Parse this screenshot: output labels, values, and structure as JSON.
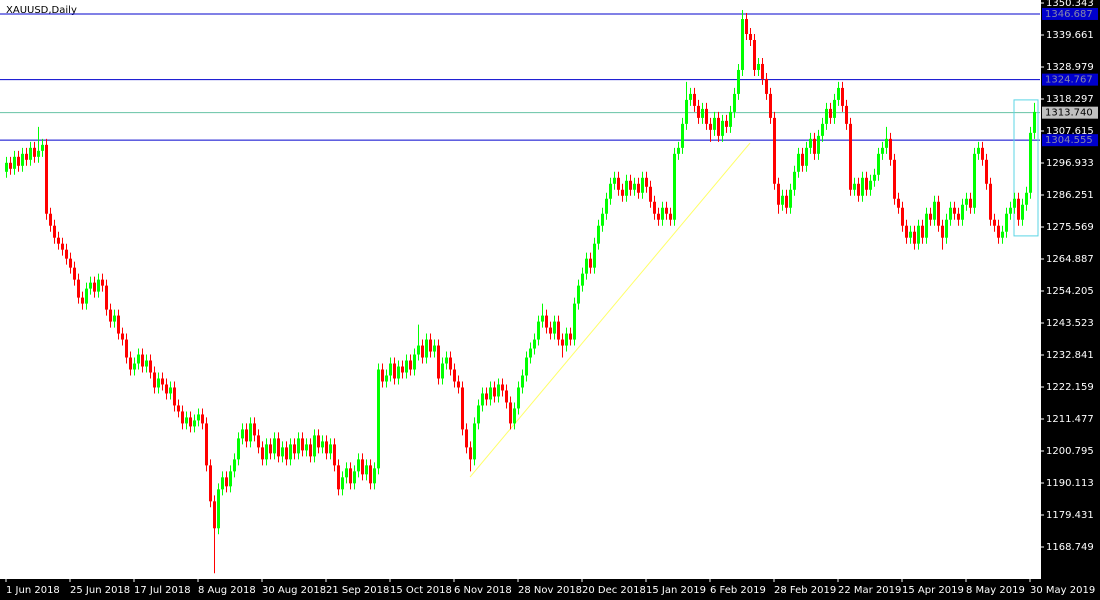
{
  "chart_data": {
    "type": "candlestick",
    "title": "XAUUSD,Daily",
    "up_color": "#00ff00",
    "down_color": "#ff0000",
    "background": "#ffffff",
    "candles": {
      "open": [
        1294,
        1297,
        1295,
        1299,
        1296,
        1300,
        1298,
        1302,
        1299,
        1301,
        1303,
        1280,
        1276,
        1272,
        1270,
        1268,
        1265,
        1262,
        1258,
        1252,
        1250,
        1255,
        1257,
        1254,
        1258,
        1256,
        1248,
        1244,
        1246,
        1240,
        1238,
        1232,
        1228,
        1230,
        1233,
        1229,
        1231,
        1227,
        1222,
        1225,
        1223,
        1220,
        1222,
        1216,
        1214,
        1210,
        1212,
        1209,
        1211,
        1213,
        1210,
        1196,
        1184,
        1175,
        1188,
        1192,
        1189,
        1194,
        1198,
        1205,
        1208,
        1204,
        1210,
        1206,
        1202,
        1198,
        1203,
        1200,
        1205,
        1199,
        1202,
        1198,
        1203,
        1200,
        1205,
        1201,
        1203,
        1199,
        1206,
        1202,
        1204,
        1200,
        1203,
        1196,
        1188,
        1192,
        1195,
        1190,
        1194,
        1198,
        1193,
        1196,
        1190,
        1195,
        1228,
        1224,
        1226,
        1230,
        1225,
        1229,
        1227,
        1231,
        1228,
        1233,
        1236,
        1232,
        1238,
        1234,
        1236,
        1225,
        1230,
        1232,
        1228,
        1224,
        1222,
        1208,
        1202,
        1198,
        1210,
        1216,
        1220,
        1218,
        1222,
        1219,
        1223,
        1221,
        1217,
        1210,
        1215,
        1222,
        1226,
        1232,
        1235,
        1238,
        1244,
        1246,
        1242,
        1240,
        1244,
        1238,
        1236,
        1240,
        1238,
        1250,
        1256,
        1260,
        1265,
        1262,
        1270,
        1276,
        1280,
        1285,
        1290,
        1292,
        1288,
        1286,
        1291,
        1288,
        1290,
        1287,
        1292,
        1289,
        1284,
        1280,
        1278,
        1282,
        1280,
        1278,
        1300,
        1302,
        1310,
        1318,
        1320,
        1316,
        1312,
        1315,
        1310,
        1308,
        1312,
        1306,
        1311,
        1309,
        1314,
        1320,
        1328,
        1345,
        1340,
        1338,
        1328,
        1330,
        1325,
        1320,
        1312,
        1290,
        1283,
        1286,
        1282,
        1288,
        1294,
        1300,
        1296,
        1302,
        1305,
        1300,
        1306,
        1310,
        1315,
        1312,
        1318,
        1322,
        1316,
        1310,
        1288,
        1290,
        1286,
        1292,
        1288,
        1291,
        1293,
        1300,
        1302,
        1305,
        1298,
        1285,
        1282,
        1276,
        1272,
        1274,
        1270,
        1276,
        1272,
        1280,
        1278,
        1284,
        1276,
        1272,
        1278,
        1282,
        1280,
        1278,
        1283,
        1285,
        1282,
        1300,
        1302,
        1298,
        1290,
        1278,
        1276,
        1272,
        1274,
        1280,
        1282,
        1285,
        1278,
        1283,
        1287,
        1307
      ],
      "high": [
        1299,
        1299,
        1301,
        1301,
        1302,
        1302,
        1304,
        1304,
        1309,
        1305,
        1305,
        1282,
        1278,
        1274,
        1272,
        1270,
        1267,
        1264,
        1260,
        1254,
        1257,
        1259,
        1259,
        1260,
        1260,
        1258,
        1250,
        1248,
        1248,
        1242,
        1240,
        1234,
        1232,
        1235,
        1235,
        1233,
        1233,
        1229,
        1227,
        1227,
        1225,
        1224,
        1224,
        1218,
        1216,
        1214,
        1214,
        1213,
        1215,
        1215,
        1212,
        1198,
        1186,
        1190,
        1194,
        1194,
        1196,
        1200,
        1207,
        1210,
        1210,
        1212,
        1212,
        1208,
        1204,
        1205,
        1205,
        1207,
        1207,
        1204,
        1204,
        1205,
        1205,
        1207,
        1207,
        1205,
        1205,
        1208,
        1208,
        1206,
        1206,
        1205,
        1205,
        1198,
        1194,
        1197,
        1197,
        1196,
        1200,
        1200,
        1198,
        1198,
        1197,
        1230,
        1230,
        1228,
        1232,
        1232,
        1231,
        1231,
        1233,
        1233,
        1235,
        1243,
        1238,
        1240,
        1240,
        1238,
        1238,
        1232,
        1234,
        1234,
        1230,
        1226,
        1224,
        1210,
        1204,
        1212,
        1218,
        1222,
        1222,
        1224,
        1224,
        1225,
        1225,
        1223,
        1219,
        1217,
        1224,
        1228,
        1234,
        1237,
        1240,
        1246,
        1250,
        1248,
        1244,
        1246,
        1246,
        1240,
        1242,
        1242,
        1252,
        1258,
        1262,
        1267,
        1267,
        1272,
        1278,
        1282,
        1287,
        1292,
        1294,
        1294,
        1290,
        1293,
        1293,
        1292,
        1292,
        1294,
        1294,
        1291,
        1286,
        1282,
        1284,
        1284,
        1282,
        1302,
        1304,
        1312,
        1324,
        1322,
        1322,
        1318,
        1317,
        1317,
        1312,
        1314,
        1314,
        1313,
        1313,
        1316,
        1322,
        1330,
        1348,
        1347,
        1342,
        1340,
        1332,
        1332,
        1327,
        1322,
        1314,
        1292,
        1288,
        1288,
        1290,
        1296,
        1302,
        1302,
        1304,
        1307,
        1307,
        1308,
        1312,
        1317,
        1317,
        1320,
        1324,
        1324,
        1318,
        1312,
        1292,
        1292,
        1294,
        1294,
        1293,
        1295,
        1302,
        1304,
        1309,
        1307,
        1300,
        1287,
        1284,
        1278,
        1276,
        1276,
        1278,
        1278,
        1282,
        1282,
        1286,
        1286,
        1278,
        1280,
        1284,
        1284,
        1282,
        1285,
        1287,
        1287,
        1302,
        1304,
        1304,
        1300,
        1292,
        1280,
        1278,
        1276,
        1282,
        1284,
        1287,
        1287,
        1285,
        1289,
        1309,
        1317
      ],
      "low": [
        1292,
        1293,
        1293,
        1294,
        1294,
        1296,
        1296,
        1297,
        1297,
        1299,
        1278,
        1274,
        1270,
        1268,
        1266,
        1263,
        1260,
        1256,
        1250,
        1248,
        1248,
        1253,
        1252,
        1252,
        1254,
        1246,
        1242,
        1242,
        1238,
        1236,
        1230,
        1226,
        1226,
        1228,
        1227,
        1227,
        1225,
        1220,
        1220,
        1221,
        1218,
        1218,
        1214,
        1212,
        1208,
        1208,
        1207,
        1207,
        1209,
        1208,
        1194,
        1182,
        1160,
        1173,
        1186,
        1187,
        1187,
        1192,
        1196,
        1203,
        1202,
        1202,
        1204,
        1200,
        1196,
        1196,
        1198,
        1198,
        1197,
        1197,
        1196,
        1196,
        1198,
        1198,
        1199,
        1199,
        1197,
        1197,
        1200,
        1200,
        1198,
        1198,
        1194,
        1186,
        1186,
        1190,
        1188,
        1188,
        1192,
        1191,
        1191,
        1188,
        1188,
        1193,
        1222,
        1222,
        1224,
        1223,
        1223,
        1225,
        1225,
        1226,
        1226,
        1231,
        1230,
        1230,
        1232,
        1232,
        1223,
        1223,
        1228,
        1226,
        1222,
        1220,
        1206,
        1200,
        1194,
        1196,
        1208,
        1214,
        1216,
        1216,
        1217,
        1217,
        1219,
        1215,
        1208,
        1208,
        1213,
        1220,
        1224,
        1230,
        1233,
        1236,
        1242,
        1240,
        1238,
        1238,
        1236,
        1232,
        1234,
        1236,
        1236,
        1248,
        1254,
        1258,
        1260,
        1260,
        1268,
        1274,
        1278,
        1283,
        1288,
        1286,
        1284,
        1284,
        1286,
        1286,
        1285,
        1285,
        1287,
        1282,
        1278,
        1276,
        1276,
        1278,
        1276,
        1276,
        1298,
        1300,
        1308,
        1316,
        1314,
        1310,
        1310,
        1308,
        1304,
        1306,
        1304,
        1304,
        1307,
        1307,
        1312,
        1318,
        1326,
        1338,
        1336,
        1326,
        1326,
        1323,
        1318,
        1310,
        1288,
        1280,
        1281,
        1280,
        1280,
        1286,
        1292,
        1294,
        1294,
        1300,
        1298,
        1298,
        1304,
        1308,
        1310,
        1310,
        1316,
        1314,
        1308,
        1286,
        1286,
        1284,
        1284,
        1286,
        1286,
        1289,
        1291,
        1298,
        1300,
        1296,
        1283,
        1280,
        1274,
        1270,
        1270,
        1268,
        1268,
        1270,
        1270,
        1276,
        1276,
        1274,
        1268,
        1270,
        1276,
        1278,
        1276,
        1276,
        1281,
        1280,
        1280,
        1298,
        1296,
        1288,
        1276,
        1274,
        1270,
        1270,
        1272,
        1278,
        1280,
        1276,
        1276,
        1281,
        1285,
        1305
      ],
      "close": [
        1297,
        1295,
        1299,
        1296,
        1300,
        1298,
        1302,
        1299,
        1301,
        1303,
        1280,
        1276,
        1272,
        1270,
        1268,
        1265,
        1262,
        1258,
        1252,
        1250,
        1255,
        1257,
        1254,
        1258,
        1256,
        1248,
        1244,
        1246,
        1240,
        1238,
        1232,
        1228,
        1230,
        1233,
        1229,
        1231,
        1227,
        1222,
        1225,
        1223,
        1220,
        1222,
        1216,
        1214,
        1210,
        1212,
        1209,
        1211,
        1213,
        1210,
        1196,
        1184,
        1175,
        1188,
        1192,
        1189,
        1194,
        1198,
        1205,
        1208,
        1204,
        1210,
        1206,
        1202,
        1198,
        1203,
        1200,
        1205,
        1199,
        1202,
        1198,
        1203,
        1200,
        1205,
        1201,
        1203,
        1199,
        1206,
        1202,
        1204,
        1200,
        1203,
        1196,
        1188,
        1192,
        1195,
        1190,
        1194,
        1198,
        1193,
        1196,
        1190,
        1195,
        1228,
        1224,
        1226,
        1230,
        1225,
        1229,
        1227,
        1231,
        1228,
        1233,
        1236,
        1232,
        1238,
        1234,
        1236,
        1225,
        1230,
        1232,
        1228,
        1224,
        1222,
        1208,
        1202,
        1198,
        1210,
        1216,
        1220,
        1218,
        1222,
        1219,
        1223,
        1221,
        1217,
        1210,
        1215,
        1222,
        1226,
        1232,
        1235,
        1238,
        1244,
        1246,
        1242,
        1240,
        1244,
        1238,
        1236,
        1240,
        1238,
        1250,
        1256,
        1260,
        1265,
        1262,
        1270,
        1276,
        1280,
        1285,
        1290,
        1292,
        1288,
        1286,
        1291,
        1288,
        1290,
        1287,
        1292,
        1289,
        1284,
        1280,
        1278,
        1282,
        1280,
        1278,
        1300,
        1302,
        1310,
        1318,
        1320,
        1316,
        1312,
        1315,
        1310,
        1308,
        1312,
        1306,
        1311,
        1309,
        1314,
        1320,
        1328,
        1345,
        1340,
        1338,
        1328,
        1330,
        1325,
        1320,
        1312,
        1290,
        1283,
        1286,
        1282,
        1288,
        1294,
        1300,
        1296,
        1302,
        1305,
        1300,
        1306,
        1310,
        1315,
        1312,
        1318,
        1322,
        1316,
        1310,
        1288,
        1290,
        1286,
        1292,
        1288,
        1291,
        1293,
        1300,
        1302,
        1305,
        1298,
        1285,
        1282,
        1276,
        1272,
        1274,
        1270,
        1276,
        1272,
        1280,
        1278,
        1284,
        1276,
        1272,
        1278,
        1282,
        1280,
        1278,
        1283,
        1285,
        1282,
        1300,
        1302,
        1298,
        1290,
        1278,
        1276,
        1272,
        1274,
        1280,
        1282,
        1285,
        1278,
        1283,
        1287,
        1307,
        1314
      ]
    },
    "xlim": [
      -1.5,
      258.5
    ],
    "xticks": [
      {
        "value": 0,
        "label": "1 Jun 2018"
      },
      {
        "value": 16,
        "label": "25 Jun 2018"
      },
      {
        "value": 32,
        "label": "17 Jul 2018"
      },
      {
        "value": 48,
        "label": "8 Aug 2018"
      },
      {
        "value": 64,
        "label": "30 Aug 2018"
      },
      {
        "value": 80,
        "label": "21 Sep 2018"
      },
      {
        "value": 96,
        "label": "15 Oct 2018"
      },
      {
        "value": 112,
        "label": "6 Nov 2018"
      },
      {
        "value": 128,
        "label": "28 Nov 2018"
      },
      {
        "value": 144,
        "label": "20 Dec 2018"
      },
      {
        "value": 160,
        "label": "15 Jan 2019"
      },
      {
        "value": 176,
        "label": "6 Feb 2019"
      },
      {
        "value": 192,
        "label": "28 Feb 2019"
      },
      {
        "value": 208,
        "label": "22 Mar 2019"
      },
      {
        "value": 224,
        "label": "15 Apr 2019"
      },
      {
        "value": 240,
        "label": "8 May 2019"
      },
      {
        "value": 256,
        "label": "30 May 2019"
      }
    ],
    "ylim": [
      1158.4,
      1351.35
    ],
    "yticks": [
      1350.343,
      1339.661,
      1328.979,
      1318.297,
      1307.615,
      1296.933,
      1286.251,
      1275.569,
      1264.887,
      1254.205,
      1243.523,
      1232.841,
      1222.159,
      1211.477,
      1200.795,
      1190.113,
      1179.431,
      1168.749
    ],
    "hlines": [
      {
        "value": 1346.687,
        "color": "#0000cd"
      },
      {
        "value": 1324.767,
        "color": "#0000cd"
      },
      {
        "value": 1304.555,
        "color": "#0000cd"
      }
    ],
    "price_line": {
      "value": 1313.74,
      "label": "1313.740",
      "color": "#66c2a5"
    },
    "trendline": {
      "x": [
        116,
        186
      ],
      "y": [
        1192.1,
        1303.6
      ],
      "color": "#ffff66"
    },
    "rectangle": {
      "x": [
        252,
        258
      ],
      "y": [
        1272.6,
        1318
      ],
      "color": "#5bd6e6"
    }
  }
}
